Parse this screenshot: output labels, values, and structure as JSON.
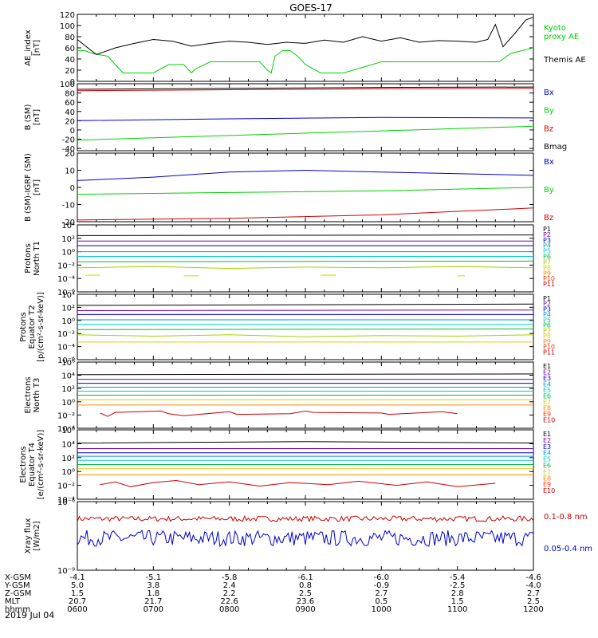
{
  "title": "GOES-17",
  "date": "2019 Jul 04",
  "colors": {
    "black": "#000000",
    "green": "#00d000",
    "red": "#cc0000",
    "blue": "#0000cc"
  },
  "chart_data": [
    {
      "type": "line",
      "ylabel": "AE_index\n[nT]",
      "ylim": [
        0,
        120
      ],
      "yticks": [
        0,
        20,
        40,
        60,
        80,
        100,
        120
      ],
      "yticklabels": [
        "0",
        "20",
        "40",
        "60",
        "80",
        "100",
        "120"
      ],
      "series": [
        {
          "name": "Kyoto\nproxy AE",
          "color": "green",
          "label_color": "#00d000",
          "x": [
            0.0,
            0.1,
            0.2,
            0.4,
            0.5,
            0.6,
            0.9,
            1.0,
            1.2,
            1.4,
            1.5,
            1.55,
            1.75,
            1.8,
            2.0,
            2.3,
            2.4,
            2.5,
            2.55,
            2.6,
            2.7,
            2.8,
            2.9,
            3.0,
            3.2,
            3.5,
            4.0,
            4.5,
            5.0,
            5.1,
            5.25,
            5.4,
            5.55,
            5.6,
            5.7,
            5.85,
            6.0
          ],
          "y": [
            55,
            55,
            50,
            45,
            30,
            15,
            15,
            15,
            30,
            30,
            15,
            22,
            35,
            35,
            35,
            35,
            35,
            20,
            15,
            45,
            55,
            55,
            45,
            30,
            15,
            15,
            35,
            35,
            35,
            35,
            35,
            35,
            35,
            40,
            50,
            55,
            60
          ]
        },
        {
          "name": "Themis AE",
          "color": "black",
          "label_color": "#000000",
          "x": [
            0,
            0.25,
            0.5,
            0.75,
            1.0,
            1.25,
            1.5,
            1.75,
            2.0,
            2.25,
            2.5,
            2.75,
            3.0,
            3.25,
            3.5,
            3.75,
            4.0,
            4.25,
            4.5,
            4.75,
            5.0,
            5.25,
            5.4,
            5.5,
            5.6,
            5.75,
            5.9,
            6.0
          ],
          "y": [
            75,
            48,
            60,
            68,
            75,
            72,
            63,
            68,
            72,
            70,
            66,
            70,
            68,
            74,
            70,
            80,
            72,
            78,
            70,
            73,
            72,
            70,
            75,
            102,
            62,
            85,
            110,
            115
          ]
        }
      ]
    },
    {
      "type": "line",
      "ylabel": "B (SM)\n[nT]",
      "ylim": [
        -45,
        100
      ],
      "yticks": [
        -40,
        -20,
        0,
        20,
        40,
        60,
        80,
        100
      ],
      "yticklabels": [
        "-40",
        "-20",
        "0",
        "20",
        "40",
        "60",
        "80",
        "100"
      ],
      "series": [
        {
          "name": "Bx",
          "color": "blue",
          "label_color": "#0000cc",
          "x": [
            0,
            2,
            4,
            6
          ],
          "y": [
            20,
            24,
            27,
            26
          ]
        },
        {
          "name": "By",
          "color": "green",
          "label_color": "#00d000",
          "x": [
            0,
            2,
            4,
            6
          ],
          "y": [
            -22,
            -12,
            -2,
            8
          ]
        },
        {
          "name": "Bz",
          "color": "red",
          "label_color": "#cc0000",
          "x": [
            0,
            2,
            4,
            6
          ],
          "y": [
            85,
            87,
            89,
            90
          ]
        },
        {
          "name": "Bmag",
          "color": "black",
          "label_color": "#000000",
          "x": [
            0,
            2,
            4,
            6
          ],
          "y": [
            88,
            90,
            92,
            93
          ]
        }
      ]
    },
    {
      "type": "line",
      "ylabel": "B (SM)-IGRF (SM)\n[nT]",
      "ylim": [
        -20,
        20
      ],
      "yticks": [
        -20,
        -10,
        0,
        10,
        20
      ],
      "yticklabels": [
        "-20",
        "-10",
        "0",
        "10",
        "20"
      ],
      "series": [
        {
          "name": "Bx",
          "color": "blue",
          "label_color": "#0000cc",
          "x": [
            0,
            1,
            2,
            3,
            4,
            5,
            6
          ],
          "y": [
            4,
            6,
            9,
            10,
            9,
            8,
            7
          ]
        },
        {
          "name": "By",
          "color": "green",
          "label_color": "#00d000",
          "x": [
            0,
            2,
            4,
            6
          ],
          "y": [
            -4,
            -3,
            -2,
            0
          ]
        },
        {
          "name": "Bz",
          "color": "red",
          "label_color": "#cc0000",
          "x": [
            0,
            2,
            4,
            6
          ],
          "y": [
            -19,
            -18,
            -16,
            -12
          ]
        }
      ]
    },
    {
      "type": "line",
      "ylog": true,
      "ylabel": "Protons\nNorth T1",
      "ylim": [
        -6,
        4
      ],
      "yticks": [
        -6,
        -4,
        -2,
        0,
        2,
        4
      ],
      "yticklabels": [
        "10⁻⁶",
        "10⁻⁴",
        "10⁻²",
        "10⁰",
        "10²",
        "10⁴"
      ],
      "series": [
        {
          "name": "P1",
          "color": "#000000",
          "x": [
            0,
            6
          ],
          "y": [
            2.4,
            2.5
          ]
        },
        {
          "name": "P2",
          "color": "#7700aa",
          "x": [
            0,
            6
          ],
          "y": [
            1.6,
            1.6
          ]
        },
        {
          "name": "P3",
          "color": "#0000cc",
          "x": [
            0,
            6
          ],
          "y": [
            0.9,
            0.9
          ]
        },
        {
          "name": "P4",
          "color": "#0099cc",
          "x": [
            0,
            6
          ],
          "y": [
            0.0,
            0.0
          ]
        },
        {
          "name": "P5",
          "color": "#00cccc",
          "x": [
            0,
            6
          ],
          "y": [
            -0.7,
            -0.7
          ]
        },
        {
          "name": "P6",
          "color": "#00bb44",
          "x": [
            0,
            6
          ],
          "y": [
            -1.5,
            -1.4
          ]
        },
        {
          "name": "P7",
          "color": "#aacc00",
          "x": [
            0,
            1,
            2,
            3,
            4,
            5,
            6
          ],
          "y": [
            -2.4,
            -2.2,
            -2.5,
            -2.3,
            -2.4,
            -2.2,
            -2.4
          ]
        },
        {
          "name": "P8",
          "color": "#ddcc00",
          "x": [
            0.1,
            0.3,
            1.4,
            1.6,
            3.2,
            3.4,
            5.0,
            5.1
          ],
          "y": [
            -3.5,
            -3.5,
            -3.6,
            -3.6,
            -3.5,
            -3.5,
            -3.6,
            -3.6
          ]
        },
        {
          "name": "P9",
          "color": "#ff8800",
          "x": [],
          "y": []
        },
        {
          "name": "P10",
          "color": "#ff3300",
          "x": [],
          "y": []
        },
        {
          "name": "P11",
          "color": "#cc0000",
          "x": [],
          "y": []
        }
      ]
    },
    {
      "type": "line",
      "ylog": true,
      "ylabel": "Protons\nEquator T2\n[p/(cm²-s-sr-keV)]",
      "ylim": [
        -6,
        4
      ],
      "yticks": [
        -6,
        -4,
        -2,
        0,
        2,
        4
      ],
      "yticklabels": [
        "10⁻⁶",
        "10⁻⁴",
        "10⁻²",
        "10⁰",
        "10²",
        "10⁴"
      ],
      "series": [
        {
          "name": "P1",
          "color": "#000000",
          "x": [
            0,
            6
          ],
          "y": [
            2.3,
            2.5
          ]
        },
        {
          "name": "P2",
          "color": "#7700aa",
          "x": [
            0,
            6
          ],
          "y": [
            1.5,
            1.6
          ]
        },
        {
          "name": "P3",
          "color": "#0000cc",
          "x": [
            0,
            6
          ],
          "y": [
            0.9,
            0.9
          ]
        },
        {
          "name": "P4",
          "color": "#0099cc",
          "x": [
            0,
            6
          ],
          "y": [
            0.1,
            0.1
          ]
        },
        {
          "name": "P5",
          "color": "#00cccc",
          "x": [
            0,
            6
          ],
          "y": [
            -0.6,
            -0.6
          ]
        },
        {
          "name": "P6",
          "color": "#00bb44",
          "x": [
            0,
            6
          ],
          "y": [
            -1.4,
            -1.3
          ]
        },
        {
          "name": "P7",
          "color": "#aacc00",
          "x": [
            0,
            1,
            2,
            3,
            4,
            5,
            6
          ],
          "y": [
            -2.2,
            -2.4,
            -2.2,
            -2.5,
            -2.3,
            -2.4,
            -2.2
          ]
        },
        {
          "name": "P8",
          "color": "#ddcc00",
          "x": [
            0,
            6
          ],
          "y": [
            -3.3,
            -3.3
          ]
        },
        {
          "name": "P9",
          "color": "#ff8800",
          "x": [],
          "y": []
        },
        {
          "name": "P10",
          "color": "#ff3300",
          "x": [],
          "y": []
        },
        {
          "name": "P11",
          "color": "#cc0000",
          "x": [],
          "y": []
        }
      ]
    },
    {
      "type": "line",
      "ylog": true,
      "ylabel": "Electrons\nNorth T3",
      "ylim": [
        -4,
        6
      ],
      "yticks": [
        -4,
        -2,
        0,
        2,
        4,
        6
      ],
      "yticklabels": [
        "10⁻⁴",
        "10⁻²",
        "10⁰",
        "10²",
        "10⁴",
        "10⁶"
      ],
      "series": [
        {
          "name": "E1",
          "color": "#000000",
          "x": [
            0,
            6
          ],
          "y": [
            4.1,
            4.2
          ]
        },
        {
          "name": "E2",
          "color": "#7700aa",
          "x": [
            0,
            6
          ],
          "y": [
            3.4,
            3.4
          ]
        },
        {
          "name": "E3",
          "color": "#0000cc",
          "x": [
            0,
            6
          ],
          "y": [
            2.8,
            2.8
          ]
        },
        {
          "name": "E4",
          "color": "#0099cc",
          "x": [
            0,
            6
          ],
          "y": [
            2.2,
            2.2
          ]
        },
        {
          "name": "E5",
          "color": "#00cccc",
          "x": [
            0,
            6
          ],
          "y": [
            1.6,
            1.6
          ]
        },
        {
          "name": "E6",
          "color": "#00bb44",
          "x": [
            0,
            6
          ],
          "y": [
            1.0,
            1.0
          ]
        },
        {
          "name": "E7",
          "color": "#ddcc00",
          "x": [
            0,
            6
          ],
          "y": [
            0.3,
            0.3
          ]
        },
        {
          "name": "E8",
          "color": "#ff8800",
          "x": [
            0,
            6
          ],
          "y": [
            -0.5,
            -0.5
          ]
        },
        {
          "name": "E9",
          "color": "#ff3300",
          "x": [],
          "y": []
        },
        {
          "name": "E10",
          "color": "#cc0000",
          "x": [
            0.3,
            0.4,
            0.5,
            1.1,
            1.2,
            1.4,
            2.0,
            2.1,
            2.8,
            3.0,
            3.1,
            4.0,
            4.1,
            4.8,
            5.0
          ],
          "y": [
            -1.7,
            -2.2,
            -1.6,
            -1.4,
            -1.8,
            -2.1,
            -1.5,
            -1.9,
            -1.8,
            -1.4,
            -1.6,
            -1.7,
            -1.9,
            -1.5,
            -1.8
          ]
        }
      ]
    },
    {
      "type": "line",
      "ylog": true,
      "ylabel": "Electrons\nEquator T4\n[e/(cm²-s-sr-keV)]",
      "ylim": [
        -4,
        6
      ],
      "yticks": [
        -4,
        -2,
        0,
        2,
        4,
        6
      ],
      "yticklabels": [
        "10⁻⁴",
        "10⁻²",
        "10⁰",
        "10²",
        "10⁴",
        "10⁶"
      ],
      "series": [
        {
          "name": "E1",
          "color": "#000000",
          "x": [
            0,
            3,
            6
          ],
          "y": [
            4.1,
            4.3,
            4.1
          ]
        },
        {
          "name": "E2",
          "color": "#7700aa",
          "x": [
            0,
            6
          ],
          "y": [
            3.3,
            3.3
          ]
        },
        {
          "name": "E3",
          "color": "#0000cc",
          "x": [
            0,
            6
          ],
          "y": [
            2.7,
            2.7
          ]
        },
        {
          "name": "E4",
          "color": "#0099cc",
          "x": [
            0,
            6
          ],
          "y": [
            2.2,
            2.2
          ]
        },
        {
          "name": "E5",
          "color": "#00cccc",
          "x": [
            0,
            6
          ],
          "y": [
            1.6,
            1.6
          ]
        },
        {
          "name": "E6",
          "color": "#00bb44",
          "x": [
            0,
            6
          ],
          "y": [
            1.0,
            1.0
          ]
        },
        {
          "name": "E7",
          "color": "#ddcc00",
          "x": [
            0,
            6
          ],
          "y": [
            0.4,
            0.4
          ]
        },
        {
          "name": "E8",
          "color": "#ff8800",
          "x": [
            0,
            6
          ],
          "y": [
            -0.5,
            -0.5
          ]
        },
        {
          "name": "E9",
          "color": "#ff3300",
          "x": [],
          "y": []
        },
        {
          "name": "E10",
          "color": "#cc0000",
          "x": [
            0.3,
            0.5,
            0.7,
            1.0,
            1.3,
            1.6,
            2.0,
            2.4,
            2.8,
            3.3,
            3.7,
            4.2,
            4.6,
            5.0,
            5.5
          ],
          "y": [
            -1.9,
            -1.5,
            -2.2,
            -1.6,
            -1.3,
            -1.9,
            -1.5,
            -2.1,
            -1.6,
            -1.9,
            -1.4,
            -2.0,
            -1.5,
            -2.2,
            -1.7
          ]
        }
      ]
    },
    {
      "type": "line",
      "ylog": true,
      "ylabel": "Xray flux\n[W/m2]",
      "ylim": [
        -9,
        -6
      ],
      "yticks": [
        -9,
        -6
      ],
      "yticklabels": [
        "10⁻⁹",
        "10⁻⁶"
      ],
      "series": [
        {
          "name": "0.1-0.8 nm",
          "color": "red",
          "label_color": "#cc0000",
          "noise": 0.12,
          "x": [
            0,
            6
          ],
          "y": [
            -6.75,
            -6.75
          ]
        },
        {
          "name": "0.05-0.4 nm",
          "color": "blue",
          "label_color": "#0000cc",
          "noise": 0.35,
          "x": [
            0,
            6
          ],
          "y": [
            -7.6,
            -7.6
          ]
        }
      ]
    }
  ],
  "footer": {
    "rows": [
      {
        "label": "X-GSM",
        "values": [
          "-4.1",
          "-5.1",
          "-5.8",
          "-6.1",
          "-6.0",
          "-5.4",
          "-4.6"
        ]
      },
      {
        "label": "Y-GSM",
        "values": [
          "5.0",
          "3.8",
          "2.4",
          "0.8",
          "-0.9",
          "-2.5",
          "-4.0"
        ]
      },
      {
        "label": "Z-GSM",
        "values": [
          "1.5",
          "1.8",
          "2.2",
          "2.5",
          "2.7",
          "2.8",
          "2.7"
        ]
      },
      {
        "label": "MLT",
        "values": [
          "20.7",
          "21.7",
          "22.6",
          "23.6",
          "0.5",
          "1.5",
          "2.5"
        ]
      },
      {
        "label": "hhmm",
        "values": [
          "0600",
          "0700",
          "0800",
          "0900",
          "1000",
          "1100",
          "1200"
        ]
      }
    ]
  }
}
